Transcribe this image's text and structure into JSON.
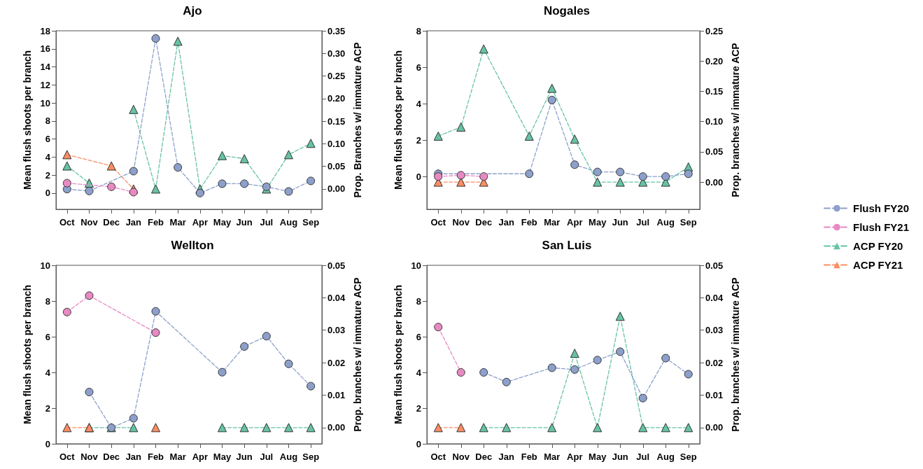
{
  "chart_data": [
    {
      "type": "line",
      "title": "Ajo",
      "ylabel": "Mean flush shoots per branch",
      "y2label": "Prop. Branches w/ immature ACP",
      "categories": [
        "Oct",
        "Nov",
        "Dec",
        "Jan",
        "Feb",
        "Mar",
        "Apr",
        "May",
        "Jun",
        "Jul",
        "Aug",
        "Sep"
      ],
      "ylim": [
        -1.8,
        18
      ],
      "yticks": [
        0,
        2,
        4,
        6,
        8,
        10,
        12,
        14,
        16,
        18
      ],
      "y2lim": [
        -0.045,
        0.35
      ],
      "y2ticks": [
        {
          "value": 0,
          "label": "0.00"
        },
        0.05,
        {
          "value": 0.1,
          "label": "0.10"
        },
        0.15,
        {
          "value": 0.2,
          "label": "0.20"
        },
        0.25,
        {
          "value": 0.3,
          "label": "0.30"
        },
        0.35
      ],
      "grid": false,
      "legend": false,
      "line_style": "dashed",
      "series": [
        {
          "color": "#8da0cb",
          "marker": "circle",
          "x": [
            "Oct",
            "Nov",
            "Jan",
            "Feb",
            "Mar",
            "Apr",
            "May",
            "Jun",
            "Jul",
            "Aug",
            "Sep"
          ],
          "values": [
            0.44,
            0.23,
            2.43,
            17.15,
            2.85,
            0,
            1.04,
            1.04,
            0.7,
            0.18,
            1.35
          ]
        },
        {
          "color": "#e78ac3",
          "marker": "circle",
          "x": [
            "Oct",
            "Dec",
            "Jan"
          ],
          "values": [
            1.1,
            0.7,
            0.1
          ]
        },
        {
          "color": "#66c2a5",
          "marker": "triangle",
          "axis": "y2",
          "values": [
            0.051,
            0.013,
            null,
            0.176,
            0,
            0.327,
            0,
            0.074,
            0.067,
            0,
            0.076,
            0.101
          ]
        },
        {
          "color": "#fc8d62",
          "marker": "triangle",
          "axis": "y2",
          "x": [
            "Oct",
            "Dec",
            "Jan"
          ],
          "values": [
            0.076,
            0.051,
            0
          ]
        }
      ]
    },
    {
      "type": "line",
      "title": "Nogales",
      "ylabel": "Mean flush shoots per branch",
      "y2label": "Prop. branches w/ immature ACP",
      "categories": [
        "Oct",
        "Nov",
        "Dec",
        "Jan",
        "Feb",
        "Mar",
        "Apr",
        "May",
        "Jun",
        "Jul",
        "Aug",
        "Sep"
      ],
      "ylim": [
        -1.8,
        8
      ],
      "yticks": [
        0,
        2,
        4,
        6,
        8
      ],
      "y2lim": [
        -0.045,
        0.25
      ],
      "y2ticks": [
        {
          "value": 0,
          "label": "0.00"
        },
        0.05,
        {
          "value": 0.1,
          "label": "0.10"
        },
        0.15,
        {
          "value": 0.2,
          "label": "0.20"
        },
        0.25
      ],
      "grid": false,
      "legend": "right",
      "line_style": "dashed",
      "series": [
        {
          "name": "Flush FY20",
          "color": "#8da0cb",
          "marker": "circle",
          "x": [
            "Oct",
            "Feb",
            "Mar",
            "Apr",
            "May",
            "Jun",
            "Jul",
            "Aug",
            "Sep"
          ],
          "values": [
            0.15,
            0.15,
            4.2,
            0.65,
            0.25,
            0.25,
            0,
            0,
            0.15
          ]
        },
        {
          "name": "Flush FY21",
          "color": "#e78ac3",
          "marker": "circle",
          "x": [
            "Oct",
            "Nov",
            "Dec"
          ],
          "values": [
            0,
            0.07,
            0
          ]
        },
        {
          "name": "ACP FY20",
          "color": "#66c2a5",
          "marker": "triangle",
          "axis": "y2",
          "x": [
            "Oct",
            "Nov",
            "Dec",
            "Feb",
            "Mar",
            "Apr",
            "May",
            "Jun",
            "Jul",
            "Aug",
            "Sep"
          ],
          "values": [
            0.076,
            0.091,
            0.22,
            0.076,
            0.155,
            0.071,
            0,
            0,
            0,
            0,
            0.025
          ]
        },
        {
          "name": "ACP FY21",
          "color": "#fc8d62",
          "marker": "triangle",
          "axis": "y2",
          "x": [
            "Oct",
            "Nov",
            "Dec"
          ],
          "values": [
            0,
            0,
            0
          ]
        }
      ]
    },
    {
      "type": "line",
      "title": "Wellton",
      "ylabel": "Mean flush shoots per branch",
      "y2label": "Prop. branches w/ immature ACP",
      "categories": [
        "Oct",
        "Nov",
        "Dec",
        "Jan",
        "Feb",
        "Mar",
        "Apr",
        "May",
        "Jun",
        "Jul",
        "Aug",
        "Sep"
      ],
      "ylim": [
        0,
        10
      ],
      "yticks": [
        0,
        2,
        4,
        6,
        8,
        10
      ],
      "y2lim": [
        -0.005,
        0.05
      ],
      "y2ticks": [
        {
          "value": 0,
          "label": "0.00"
        },
        0.01,
        0.02,
        0.03,
        0.04,
        0.05
      ],
      "grid": false,
      "legend": false,
      "line_style": "dashed",
      "series": [
        {
          "color": "#8da0cb",
          "marker": "circle",
          "x": [
            "Nov",
            "Dec",
            "Jan",
            "Feb",
            "May",
            "Jun",
            "Jul",
            "Aug",
            "Sep"
          ],
          "values": [
            2.9,
            0.9,
            1.43,
            7.42,
            4.01,
            5.45,
            6.03,
            4.48,
            3.23
          ]
        },
        {
          "color": "#e78ac3",
          "marker": "circle",
          "x": [
            "Oct",
            "Nov",
            "Feb"
          ],
          "values": [
            7.38,
            8.3,
            6.23
          ]
        },
        {
          "color": "#66c2a5",
          "marker": "triangle",
          "axis": "y2",
          "x": [
            "Nov",
            "Dec",
            "Jan",
            "Feb",
            "Mar",
            "Apr",
            "May",
            "Jun",
            "Jul",
            "Aug",
            "Sep"
          ],
          "values": [
            0,
            0,
            0,
            null,
            null,
            null,
            0,
            0,
            0,
            0,
            0
          ]
        },
        {
          "color": "#fc8d62",
          "marker": "triangle",
          "axis": "y2",
          "x": [
            "Oct",
            "Nov",
            "Dec",
            "Jan",
            "Feb"
          ],
          "values": [
            0,
            0,
            null,
            null,
            0
          ]
        }
      ]
    },
    {
      "type": "line",
      "title": "San Luis",
      "ylabel": "Mean flush shoots per branch",
      "y2label": "Prop. branches w/ immature ACP",
      "categories": [
        "Oct",
        "Nov",
        "Dec",
        "Jan",
        "Feb",
        "Mar",
        "Apr",
        "May",
        "Jun",
        "Jul",
        "Aug",
        "Sep"
      ],
      "ylim": [
        0,
        10
      ],
      "yticks": [
        0,
        2,
        4,
        6,
        8,
        10
      ],
      "y2lim": [
        -0.005,
        0.05
      ],
      "y2ticks": [
        {
          "value": 0,
          "label": "0.00"
        },
        0.01,
        0.02,
        0.03,
        0.04,
        0.05
      ],
      "grid": false,
      "legend": false,
      "line_style": "dashed",
      "series": [
        {
          "color": "#8da0cb",
          "marker": "circle",
          "x": [
            "Dec",
            "Jan",
            "Mar",
            "Apr",
            "May",
            "Jun",
            "Jul",
            "Aug",
            "Sep"
          ],
          "values": [
            4.0,
            3.46,
            4.26,
            4.16,
            4.69,
            5.16,
            2.56,
            4.8,
            3.9
          ]
        },
        {
          "color": "#e78ac3",
          "marker": "circle",
          "x": [
            "Oct",
            "Nov"
          ],
          "values": [
            6.54,
            4.0
          ]
        },
        {
          "color": "#66c2a5",
          "marker": "triangle",
          "axis": "y2",
          "x": [
            "Dec",
            "Jan",
            "Mar",
            "Apr",
            "May",
            "Jun",
            "Jul",
            "Aug",
            "Sep"
          ],
          "values": [
            0,
            0,
            0,
            0.0229,
            0,
            0.0343,
            0,
            0,
            0
          ]
        },
        {
          "color": "#fc8d62",
          "marker": "triangle",
          "axis": "y2",
          "x": [
            "Oct",
            "Nov"
          ],
          "values": [
            0,
            0
          ]
        }
      ]
    }
  ]
}
